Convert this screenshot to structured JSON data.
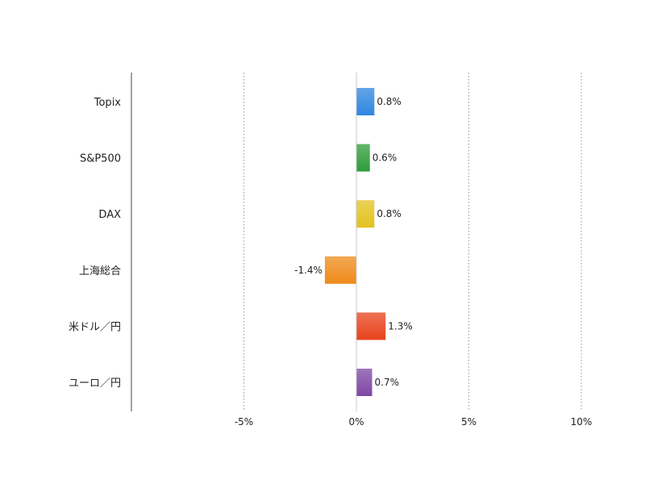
{
  "chart_data": {
    "type": "bar",
    "orientation": "horizontal",
    "categories": [
      "Topix",
      "S&P500",
      "DAX",
      "上海総合",
      "米ドル／円",
      "ユーロ／円"
    ],
    "values": [
      0.8,
      0.6,
      0.8,
      -1.4,
      1.3,
      0.7
    ],
    "data_labels": [
      "0.8%",
      "0.6%",
      "0.8%",
      "-1.4%",
      "1.3%",
      "0.7%"
    ],
    "colors": [
      "#2f86e0",
      "#2f9d3a",
      "#e3c21f",
      "#ee8a1a",
      "#e8431c",
      "#7e47a6"
    ],
    "x_ticks": [
      -5,
      0,
      5,
      10
    ],
    "x_tick_labels": [
      "-5%",
      "0%",
      "5%",
      "10%"
    ],
    "xlim": [
      -10,
      10
    ],
    "grid": "vertical-dotted",
    "title": "",
    "xlabel": "",
    "ylabel": ""
  }
}
